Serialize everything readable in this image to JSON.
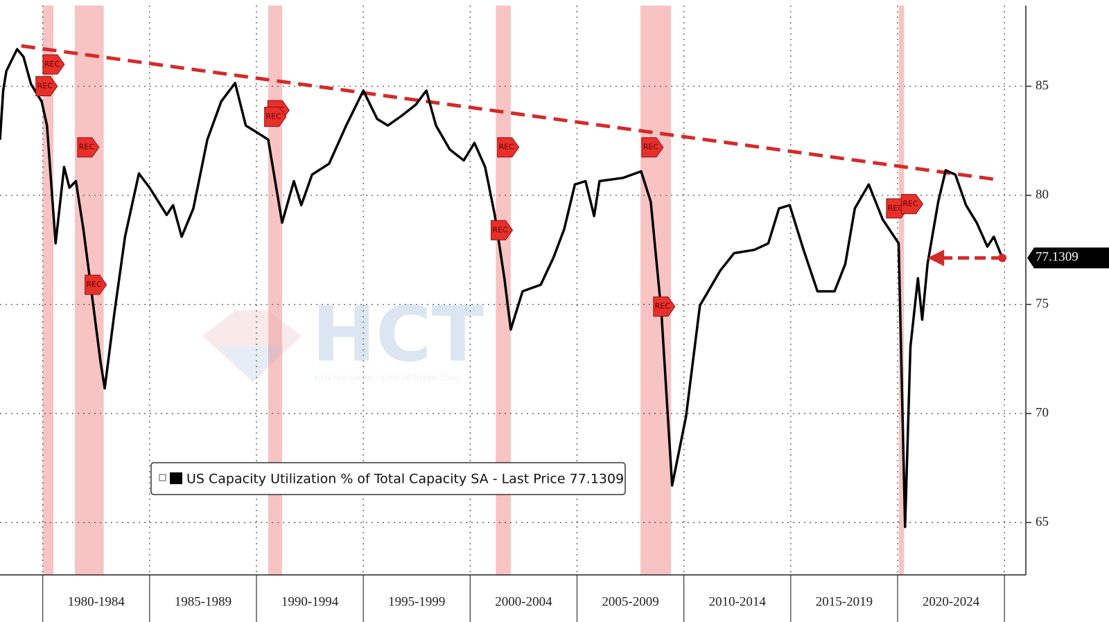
{
  "chart_data": {
    "type": "line",
    "series": [
      {
        "name": "US Capacity Utilization % of Total Capacity SA - Last Price 77.1309",
        "color": "#000000",
        "x": [
          1978.0,
          1978.15,
          1978.3,
          1978.8,
          1979.1,
          1979.45,
          1979.95,
          1980.2,
          1980.6,
          1981.0,
          1981.25,
          1981.55,
          1981.9,
          1982.2,
          1982.7,
          1982.9,
          1983.35,
          1983.85,
          1984.5,
          1985.0,
          1985.8,
          1986.1,
          1986.5,
          1987.05,
          1987.7,
          1988.35,
          1989.0,
          1989.5,
          1990.0,
          1990.55,
          1991.2,
          1991.75,
          1992.1,
          1992.6,
          1993.4,
          1994.2,
          1995.0,
          1995.65,
          1996.15,
          1996.8,
          1997.45,
          1997.95,
          1998.4,
          1999.05,
          1999.7,
          2000.2,
          2000.7,
          2001.15,
          2001.6,
          2001.9,
          2002.45,
          2003.3,
          2003.9,
          2004.4,
          2004.9,
          2005.4,
          2005.8,
          2006.05,
          2007.15,
          2008.0,
          2008.45,
          2008.95,
          2009.45,
          2010.1,
          2010.75,
          2011.7,
          2012.35,
          2013.3,
          2013.95,
          2014.45,
          2014.95,
          2015.6,
          2016.25,
          2017.05,
          2017.55,
          2018.0,
          2018.65,
          2019.3,
          2020.05,
          2020.35,
          2020.6,
          2020.95,
          2021.15,
          2021.4,
          2021.9,
          2022.25,
          2022.7,
          2023.2,
          2023.7,
          2024.2,
          2024.5,
          2024.9
        ],
        "values": [
          82.55,
          84.8,
          85.7,
          86.7,
          86.35,
          85.1,
          84.3,
          83.2,
          77.8,
          81.3,
          80.35,
          80.65,
          78.45,
          76.2,
          72.4,
          71.15,
          74.6,
          78.1,
          81.0,
          80.35,
          79.1,
          79.55,
          78.1,
          79.4,
          82.55,
          84.3,
          85.15,
          83.2,
          82.9,
          82.55,
          78.75,
          80.65,
          79.55,
          80.95,
          81.45,
          83.2,
          84.8,
          83.5,
          83.2,
          83.65,
          84.15,
          84.8,
          83.2,
          82.1,
          81.6,
          82.4,
          81.3,
          79.1,
          76.2,
          73.85,
          75.6,
          75.9,
          77.15,
          78.45,
          80.5,
          80.65,
          79.05,
          80.65,
          80.8,
          81.1,
          79.7,
          74.6,
          66.7,
          69.85,
          74.95,
          76.55,
          77.35,
          77.5,
          77.8,
          79.4,
          79.55,
          77.5,
          75.6,
          75.6,
          76.85,
          79.4,
          80.5,
          78.9,
          77.8,
          64.8,
          73.05,
          76.2,
          74.3,
          76.85,
          79.7,
          81.15,
          80.95,
          79.55,
          78.75,
          77.65,
          78.1,
          77.1309
        ]
      }
    ],
    "last_price": 77.1309,
    "last_price_arrow_x": [
      2021.4,
      2024.9
    ],
    "trend_line": {
      "x": [
        1979.0,
        2024.8
      ],
      "y": [
        86.85,
        80.7
      ],
      "color": "#d42a2a"
    },
    "recessions": [
      {
        "start": 1980.0,
        "end": 1980.5
      },
      {
        "start": 1981.5,
        "end": 1982.85
      },
      {
        "start": 1990.55,
        "end": 1991.2
      },
      {
        "start": 2001.2,
        "end": 2001.9
      },
      {
        "start": 2007.97,
        "end": 2009.4
      },
      {
        "start": 2020.06,
        "end": 2020.3
      }
    ],
    "recession_color": "#f6b9b9",
    "rec_markers": [
      {
        "x": 1980.43,
        "y": 86.0,
        "label": "REC"
      },
      {
        "x": 1980.1,
        "y": 85.0,
        "label": "REC"
      },
      {
        "x": 1982.05,
        "y": 82.2,
        "label": "REC"
      },
      {
        "x": 1982.4,
        "y": 75.9,
        "label": "REC"
      },
      {
        "x": 1990.95,
        "y": 83.9,
        "label": "REC"
      },
      {
        "x": 1990.8,
        "y": 83.6,
        "label": "REC"
      },
      {
        "x": 2001.7,
        "y": 82.2,
        "label": "REC"
      },
      {
        "x": 2001.4,
        "y": 78.4,
        "label": "REC"
      },
      {
        "x": 2008.45,
        "y": 82.2,
        "label": "REC"
      },
      {
        "x": 2009.0,
        "y": 74.9,
        "label": "REC"
      },
      {
        "x": 2019.9,
        "y": 79.4,
        "label": "REC"
      },
      {
        "x": 2020.6,
        "y": 79.6,
        "label": "REC"
      }
    ],
    "xlim": [
      1978.0,
      2026.0
    ],
    "xticks": [
      1980,
      1985,
      1990,
      1995,
      2000,
      2005,
      2010,
      2015,
      2020,
      2025
    ],
    "x_period_labels": [
      "1980-1984",
      "1985-1989",
      "1990-1994",
      "1995-1999",
      "2000-2004",
      "2005-2009",
      "2010-2014",
      "2015-2019",
      "2020-2024"
    ],
    "ylim": [
      62.6,
      88.7
    ],
    "yticks": [
      65,
      70,
      75,
      80,
      85
    ],
    "grid": true,
    "watermark": {
      "text": "HCT",
      "tagline": "KIẾN TẠO GIÁ TRỊ – CHIA SẺ THÀNH CÔNG"
    }
  }
}
